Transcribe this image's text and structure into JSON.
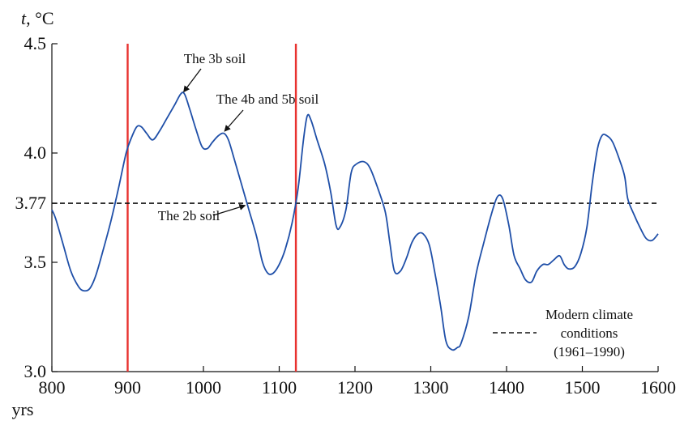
{
  "chart_data": {
    "type": "line",
    "xlabel": "yrs",
    "ylabel_var": "t",
    "ylabel_unit": ", °C",
    "xlim": [
      800,
      1600
    ],
    "ylim": [
      3.0,
      4.5
    ],
    "x_ticks": [
      800,
      900,
      1000,
      1100,
      1200,
      1300,
      1400,
      1500,
      1600
    ],
    "y_ticks": [
      {
        "value": 3.0,
        "label": "3.0"
      },
      {
        "value": 3.5,
        "label": "3.5"
      },
      {
        "value": 3.77,
        "label": "3.77"
      },
      {
        "value": 4.0,
        "label": "4.0"
      },
      {
        "value": 4.5,
        "label": "4.5"
      }
    ],
    "series": [
      {
        "color": "#1f4fa8",
        "points": [
          [
            800,
            3.74
          ],
          [
            805,
            3.7
          ],
          [
            815,
            3.58
          ],
          [
            825,
            3.46
          ],
          [
            835,
            3.39
          ],
          [
            842,
            3.37
          ],
          [
            850,
            3.38
          ],
          [
            858,
            3.44
          ],
          [
            868,
            3.56
          ],
          [
            878,
            3.69
          ],
          [
            888,
            3.84
          ],
          [
            898,
            4.0
          ],
          [
            905,
            4.07
          ],
          [
            912,
            4.12
          ],
          [
            918,
            4.12
          ],
          [
            925,
            4.09
          ],
          [
            933,
            4.06
          ],
          [
            942,
            4.1
          ],
          [
            952,
            4.16
          ],
          [
            962,
            4.22
          ],
          [
            970,
            4.27
          ],
          [
            975,
            4.27
          ],
          [
            982,
            4.2
          ],
          [
            990,
            4.11
          ],
          [
            998,
            4.03
          ],
          [
            1005,
            4.02
          ],
          [
            1012,
            4.05
          ],
          [
            1020,
            4.08
          ],
          [
            1027,
            4.09
          ],
          [
            1033,
            4.06
          ],
          [
            1040,
            3.98
          ],
          [
            1050,
            3.86
          ],
          [
            1060,
            3.74
          ],
          [
            1070,
            3.62
          ],
          [
            1078,
            3.5
          ],
          [
            1085,
            3.45
          ],
          [
            1092,
            3.45
          ],
          [
            1100,
            3.49
          ],
          [
            1108,
            3.56
          ],
          [
            1117,
            3.68
          ],
          [
            1125,
            3.84
          ],
          [
            1132,
            4.06
          ],
          [
            1137,
            4.17
          ],
          [
            1142,
            4.15
          ],
          [
            1150,
            4.06
          ],
          [
            1160,
            3.95
          ],
          [
            1168,
            3.82
          ],
          [
            1175,
            3.67
          ],
          [
            1180,
            3.66
          ],
          [
            1188,
            3.74
          ],
          [
            1195,
            3.91
          ],
          [
            1202,
            3.95
          ],
          [
            1212,
            3.96
          ],
          [
            1220,
            3.93
          ],
          [
            1230,
            3.84
          ],
          [
            1240,
            3.73
          ],
          [
            1246,
            3.59
          ],
          [
            1252,
            3.46
          ],
          [
            1260,
            3.46
          ],
          [
            1268,
            3.52
          ],
          [
            1275,
            3.59
          ],
          [
            1283,
            3.63
          ],
          [
            1290,
            3.63
          ],
          [
            1298,
            3.58
          ],
          [
            1305,
            3.46
          ],
          [
            1313,
            3.3
          ],
          [
            1320,
            3.14
          ],
          [
            1328,
            3.1
          ],
          [
            1335,
            3.11
          ],
          [
            1340,
            3.13
          ],
          [
            1350,
            3.25
          ],
          [
            1360,
            3.45
          ],
          [
            1370,
            3.59
          ],
          [
            1380,
            3.72
          ],
          [
            1388,
            3.8
          ],
          [
            1395,
            3.79
          ],
          [
            1403,
            3.67
          ],
          [
            1410,
            3.53
          ],
          [
            1418,
            3.47
          ],
          [
            1425,
            3.42
          ],
          [
            1433,
            3.41
          ],
          [
            1440,
            3.46
          ],
          [
            1448,
            3.49
          ],
          [
            1455,
            3.49
          ],
          [
            1462,
            3.51
          ],
          [
            1470,
            3.53
          ],
          [
            1476,
            3.49
          ],
          [
            1482,
            3.47
          ],
          [
            1490,
            3.48
          ],
          [
            1498,
            3.54
          ],
          [
            1506,
            3.66
          ],
          [
            1513,
            3.86
          ],
          [
            1520,
            4.02
          ],
          [
            1526,
            4.08
          ],
          [
            1532,
            4.08
          ],
          [
            1540,
            4.05
          ],
          [
            1550,
            3.96
          ],
          [
            1556,
            3.89
          ],
          [
            1560,
            3.79
          ],
          [
            1568,
            3.72
          ],
          [
            1576,
            3.66
          ],
          [
            1584,
            3.61
          ],
          [
            1592,
            3.6
          ],
          [
            1600,
            3.63
          ]
        ]
      }
    ],
    "reference_line": {
      "value": 3.77,
      "color": "#111111",
      "style": "dashed"
    },
    "vertical_markers": [
      {
        "x": 900,
        "color": "#e8322f"
      },
      {
        "x": 1122,
        "color": "#e8322f"
      }
    ],
    "annotations": [
      {
        "text": "The 3b soil",
        "point": [
          974,
          4.28
        ]
      },
      {
        "text": "The 4b and 5b soil",
        "point": [
          1028,
          4.1
        ]
      },
      {
        "text": "The 2b soil",
        "point": [
          1055,
          3.76
        ]
      }
    ],
    "legend": {
      "position": "bottom-right",
      "lines": [
        "Modern climate",
        "conditions",
        "(1961–1990)"
      ]
    }
  }
}
